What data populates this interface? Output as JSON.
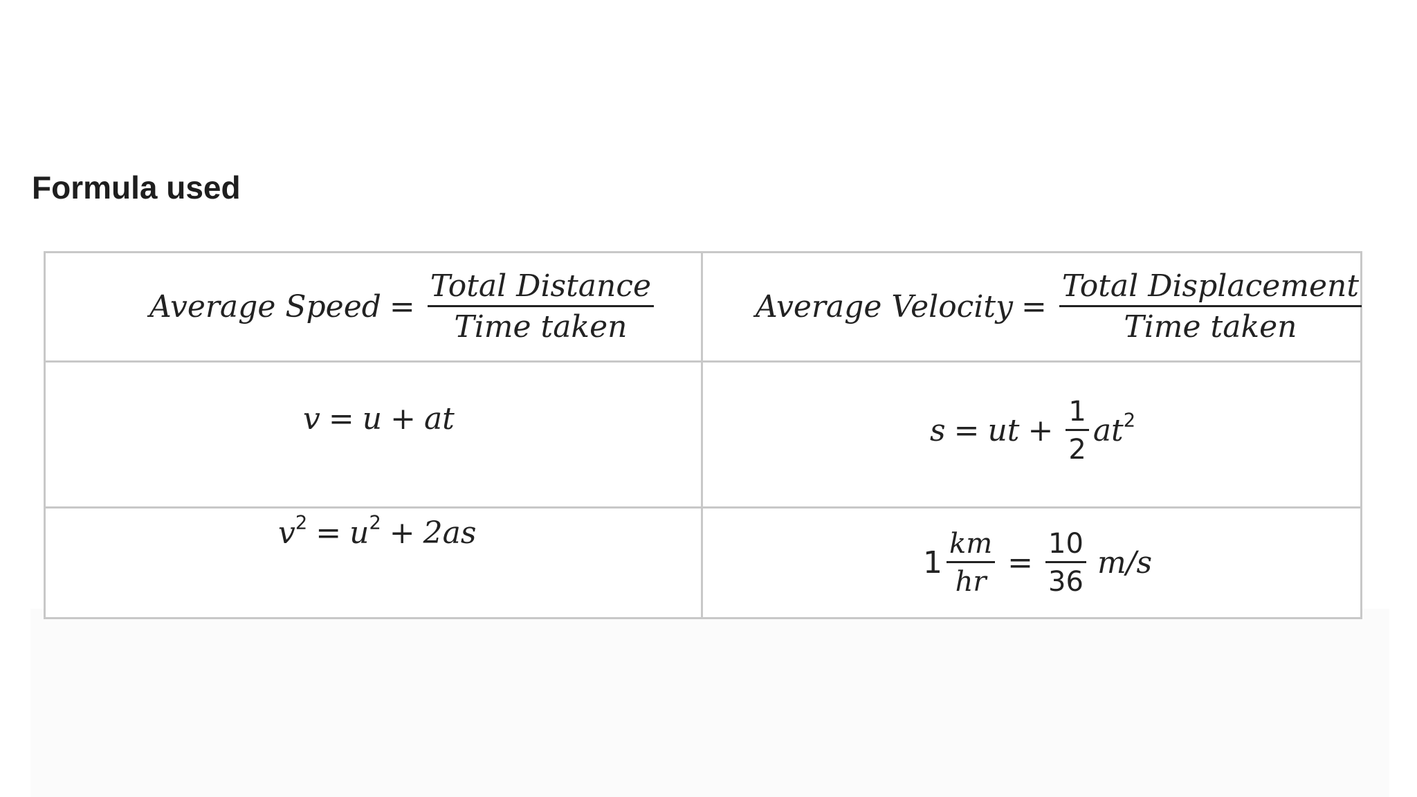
{
  "heading": "Formula used",
  "formulas": {
    "avg_speed": {
      "lhs": "Average Speed",
      "op": "=",
      "numerator": "Total Distance",
      "denominator": "Time taken"
    },
    "avg_velocity": {
      "lhs": "Average Velocity",
      "op": "=",
      "numerator": "Total Displacement",
      "denominator": "Time taken"
    },
    "first_eq": {
      "v": "v",
      "eq": "=",
      "u": "u",
      "plus": "+",
      "at": "at"
    },
    "second_eq": {
      "s": "s",
      "eq": "=",
      "ut": "ut",
      "plus": "+",
      "frac_num": "1",
      "frac_den": "2",
      "at": "at",
      "exp": "2"
    },
    "third_eq": {
      "v": "v",
      "exp1": "2",
      "eq": "=",
      "u": "u",
      "exp2": "2",
      "plus": "+",
      "rest": "2as"
    },
    "conversion": {
      "lead": "1",
      "unit_num": "km",
      "unit_den": "hr",
      "eq": "=",
      "frac_num": "10",
      "frac_den": "36",
      "unit": "m/s"
    }
  }
}
